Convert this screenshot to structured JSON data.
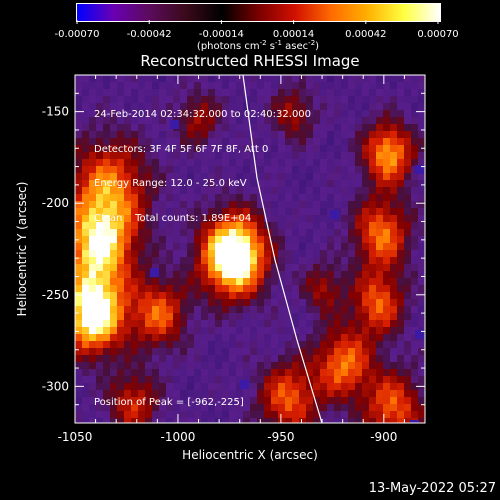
{
  "colorbar": {
    "ticks": [
      "-0.00070",
      "-0.00042",
      "-0.00014",
      "0.00014",
      "0.00042",
      "0.00070"
    ],
    "units_parts": [
      "(photons cm",
      "-2",
      " s",
      "-1",
      " asec",
      "-2",
      ")"
    ],
    "stops": [
      "#0000ff",
      "#6a00b4",
      "#5b0b5b",
      "#3a0a1a",
      "#000000",
      "#7a0000",
      "#d11000",
      "#ff6a00",
      "#ffb000",
      "#ffff40",
      "#ffffff"
    ]
  },
  "plot": {
    "title": "Reconstructed RHESSI Image",
    "xlabel": "Heliocentric X (arcsec)",
    "ylabel": "Heliocentric Y (arcsec)",
    "xticks": [
      "-1050",
      "-1000",
      "-950",
      "-900"
    ],
    "yticks": [
      "-150",
      "-200",
      "-250",
      "-300"
    ],
    "xlim": [
      -1050,
      -880
    ],
    "ylim": [
      -320,
      -130
    ],
    "info_lines": [
      "24-Feb-2014 02:34:32.000 to 02:40:32.000",
      "Detectors: 3F 4F 5F 6F 7F 8F, Att 0",
      "Energy Range: 12.0 - 25.0 keV",
      "Clean    Total counts: 1.89E+04"
    ],
    "peak_label": "Position of Peak = [-962,-225]",
    "peak": [
      -962,
      -225
    ],
    "limb_color": "#ffffff"
  },
  "footer": {
    "date": "13-May-2022 05:27"
  }
}
